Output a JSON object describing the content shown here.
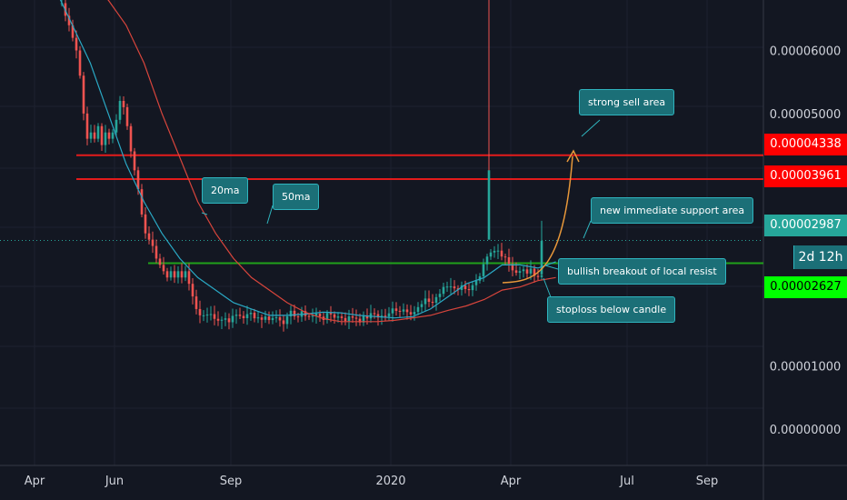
{
  "chart_data": {
    "type": "candlestick",
    "y_ticks": [
      6e-05,
      5e-05,
      1e-05,
      0.0
    ],
    "y_tick_labels": [
      "0.00006000",
      "0.00005000",
      "0.00001000",
      "0.00000000"
    ],
    "ylim": [
      -5.8e-06,
      6.8e-05
    ],
    "x_ticks": [
      "Apr",
      "Jun",
      "Sep",
      "2020",
      "Apr",
      "Jul",
      "Sep"
    ],
    "grid": true,
    "horizontal_levels": [
      {
        "value": 4.338e-05,
        "label": "0.00004338",
        "color": "#e31b1b"
      },
      {
        "value": 3.961e-05,
        "label": "0.00003961",
        "color": "#e31b1b"
      },
      {
        "value": 2.627e-05,
        "label": "0.00002627",
        "color": "#21a11a"
      }
    ],
    "last_price": {
      "value": 2.987e-05,
      "label": "0.00002987",
      "color": "#27a69a"
    },
    "interval_label": "2d 12h",
    "moving_averages": [
      "20ma",
      "50ma"
    ],
    "annotations": [
      "strong sell area",
      "20ma",
      "50ma",
      "new immediate support area",
      "bullish breakout of local resist",
      "stoploss below candle"
    ],
    "series": [
      {
        "name": "20ma",
        "values": [
          7e-05,
          6.4e-05,
          5.8e-05,
          5e-05,
          4.2e-05,
          3.6e-05,
          3.1e-05,
          2.7e-05,
          2.4e-05,
          2.2e-05,
          2e-05,
          1.9e-05,
          1.8e-05,
          1.8e-05,
          1.82e-05,
          1.85e-05,
          1.84e-05,
          1.8e-05,
          1.78e-05,
          1.76e-05,
          1.78e-05,
          1.9e-05,
          2.1e-05,
          2.3e-05,
          2.4e-05,
          2.6e-05,
          2.6e-05,
          2.55e-05,
          2.65e-05
        ]
      },
      {
        "name": "50ma",
        "values": [
          7e-05,
          7e-05,
          7e-05,
          6.8e-05,
          6.4e-05,
          5.8e-05,
          5e-05,
          4.3e-05,
          3.6e-05,
          3.1e-05,
          2.7e-05,
          2.4e-05,
          2.2e-05,
          2e-05,
          1.85e-05,
          1.75e-05,
          1.7e-05,
          1.7e-05,
          1.7e-05,
          1.72e-05,
          1.76e-05,
          1.8e-05,
          1.88e-05,
          1.95e-05,
          2.05e-05,
          2.2e-05,
          2.25e-05,
          2.35e-05,
          2.4e-05
        ]
      }
    ]
  }
}
